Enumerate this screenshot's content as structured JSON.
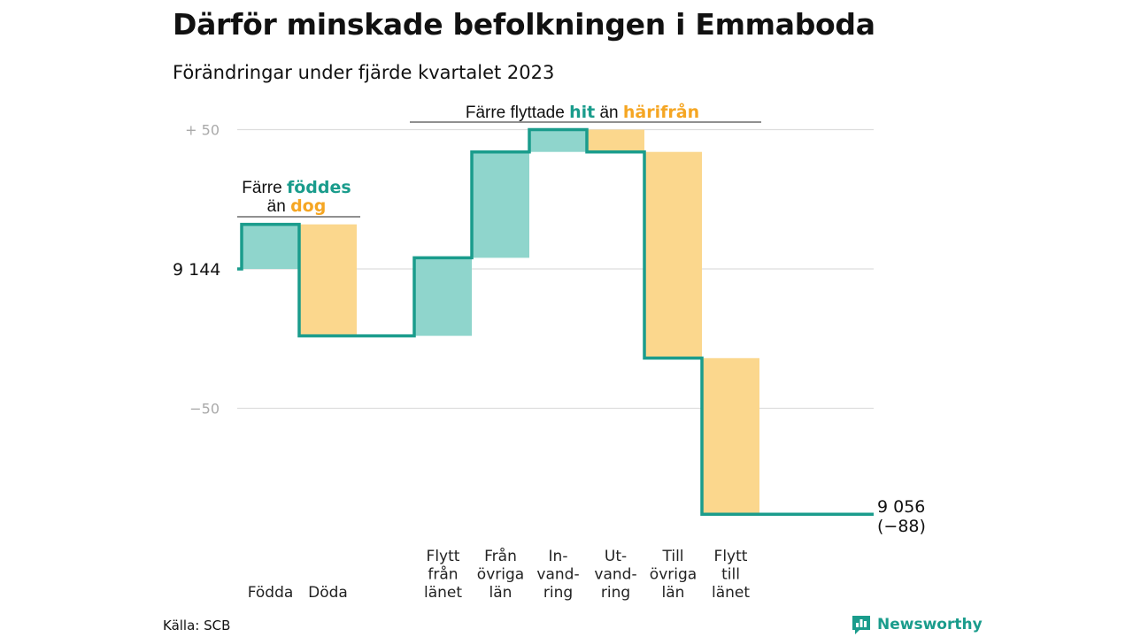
{
  "title": "Därför minskade befolkningen i Emmaboda",
  "subtitle": "Förändringar under fjärde kvartalet 2023",
  "source": "Källa: SCB",
  "brand": "Newsworthy",
  "colors": {
    "teal": "#1a9c8c",
    "positive": "#8fd5cc",
    "negative": "#fbd78d",
    "orange": "#f5a623",
    "grid": "#dddddd",
    "tick": "#aaaaaa"
  },
  "chart_data": {
    "type": "waterfall",
    "start_value": 9144,
    "end_value": 9056,
    "start_label": "9  144",
    "end_label": "9 056",
    "end_change_label": "(−88)",
    "ylim": [
      -88,
      50
    ],
    "y_ticks": [
      {
        "value": 50,
        "label": "+  50"
      },
      {
        "value": 0,
        "label": ""
      },
      {
        "value": -50,
        "label": "−50"
      }
    ],
    "steps": [
      {
        "label": "Födda",
        "value": 16,
        "group": "births"
      },
      {
        "label": "Döda",
        "value": -40,
        "group": "births"
      },
      {
        "label": "Flytt från länet",
        "value": 28,
        "group": "migration"
      },
      {
        "label": "Från övriga län",
        "value": 38,
        "group": "migration"
      },
      {
        "label": "In- vand- ring",
        "value": 8,
        "group": "migration"
      },
      {
        "label": "Ut- vand- ring",
        "value": -8,
        "group": "migration"
      },
      {
        "label": "Till övriga län",
        "value": -74,
        "group": "migration"
      },
      {
        "label": "Flytt till länet",
        "value": -56,
        "group": "migration"
      }
    ],
    "annotations": [
      {
        "id": "births",
        "parts": [
          {
            "text": "Färre ",
            "style": "plain"
          },
          {
            "text": "föddes",
            "style": "teal"
          }
        ],
        "parts2": [
          {
            "text": "än ",
            "style": "plain"
          },
          {
            "text": "dog",
            "style": "orange"
          }
        ]
      },
      {
        "id": "migration",
        "parts": [
          {
            "text": "Färre flyttade  ",
            "style": "plain"
          },
          {
            "text": "hit",
            "style": "teal"
          },
          {
            "text": "  än ",
            "style": "plain"
          },
          {
            "text": "härifrån",
            "style": "orange"
          }
        ]
      }
    ]
  }
}
